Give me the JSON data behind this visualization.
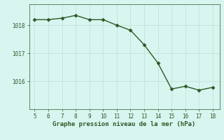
{
  "x": [
    5,
    6,
    7,
    8,
    9,
    10,
    11,
    12,
    13,
    14,
    15,
    16,
    17,
    18
  ],
  "y": [
    1018.2,
    1018.2,
    1018.25,
    1018.35,
    1018.2,
    1018.2,
    1018.0,
    1017.82,
    1017.3,
    1016.65,
    1015.72,
    1015.82,
    1015.68,
    1015.78
  ],
  "line_color": "#2d5a27",
  "marker": "D",
  "marker_size": 2.5,
  "linewidth": 1.0,
  "xlabel": "Graphe pression niveau de la mer (hPa)",
  "xlabel_color": "#2d5a27",
  "bg_color": "#d8f5f0",
  "grid_major_color": "#c0ddd8",
  "grid_minor_color": "#d0ece8",
  "yticks": [
    1016,
    1017,
    1018
  ],
  "xticks": [
    5,
    6,
    7,
    8,
    9,
    10,
    11,
    12,
    13,
    14,
    15,
    16,
    17,
    18
  ],
  "ylim": [
    1015.0,
    1018.75
  ],
  "xlim": [
    4.6,
    18.5
  ],
  "tick_color": "#2d5a27",
  "tick_fontsize": 5.5,
  "xlabel_fontsize": 6.5,
  "spine_color": "#2d5a27"
}
